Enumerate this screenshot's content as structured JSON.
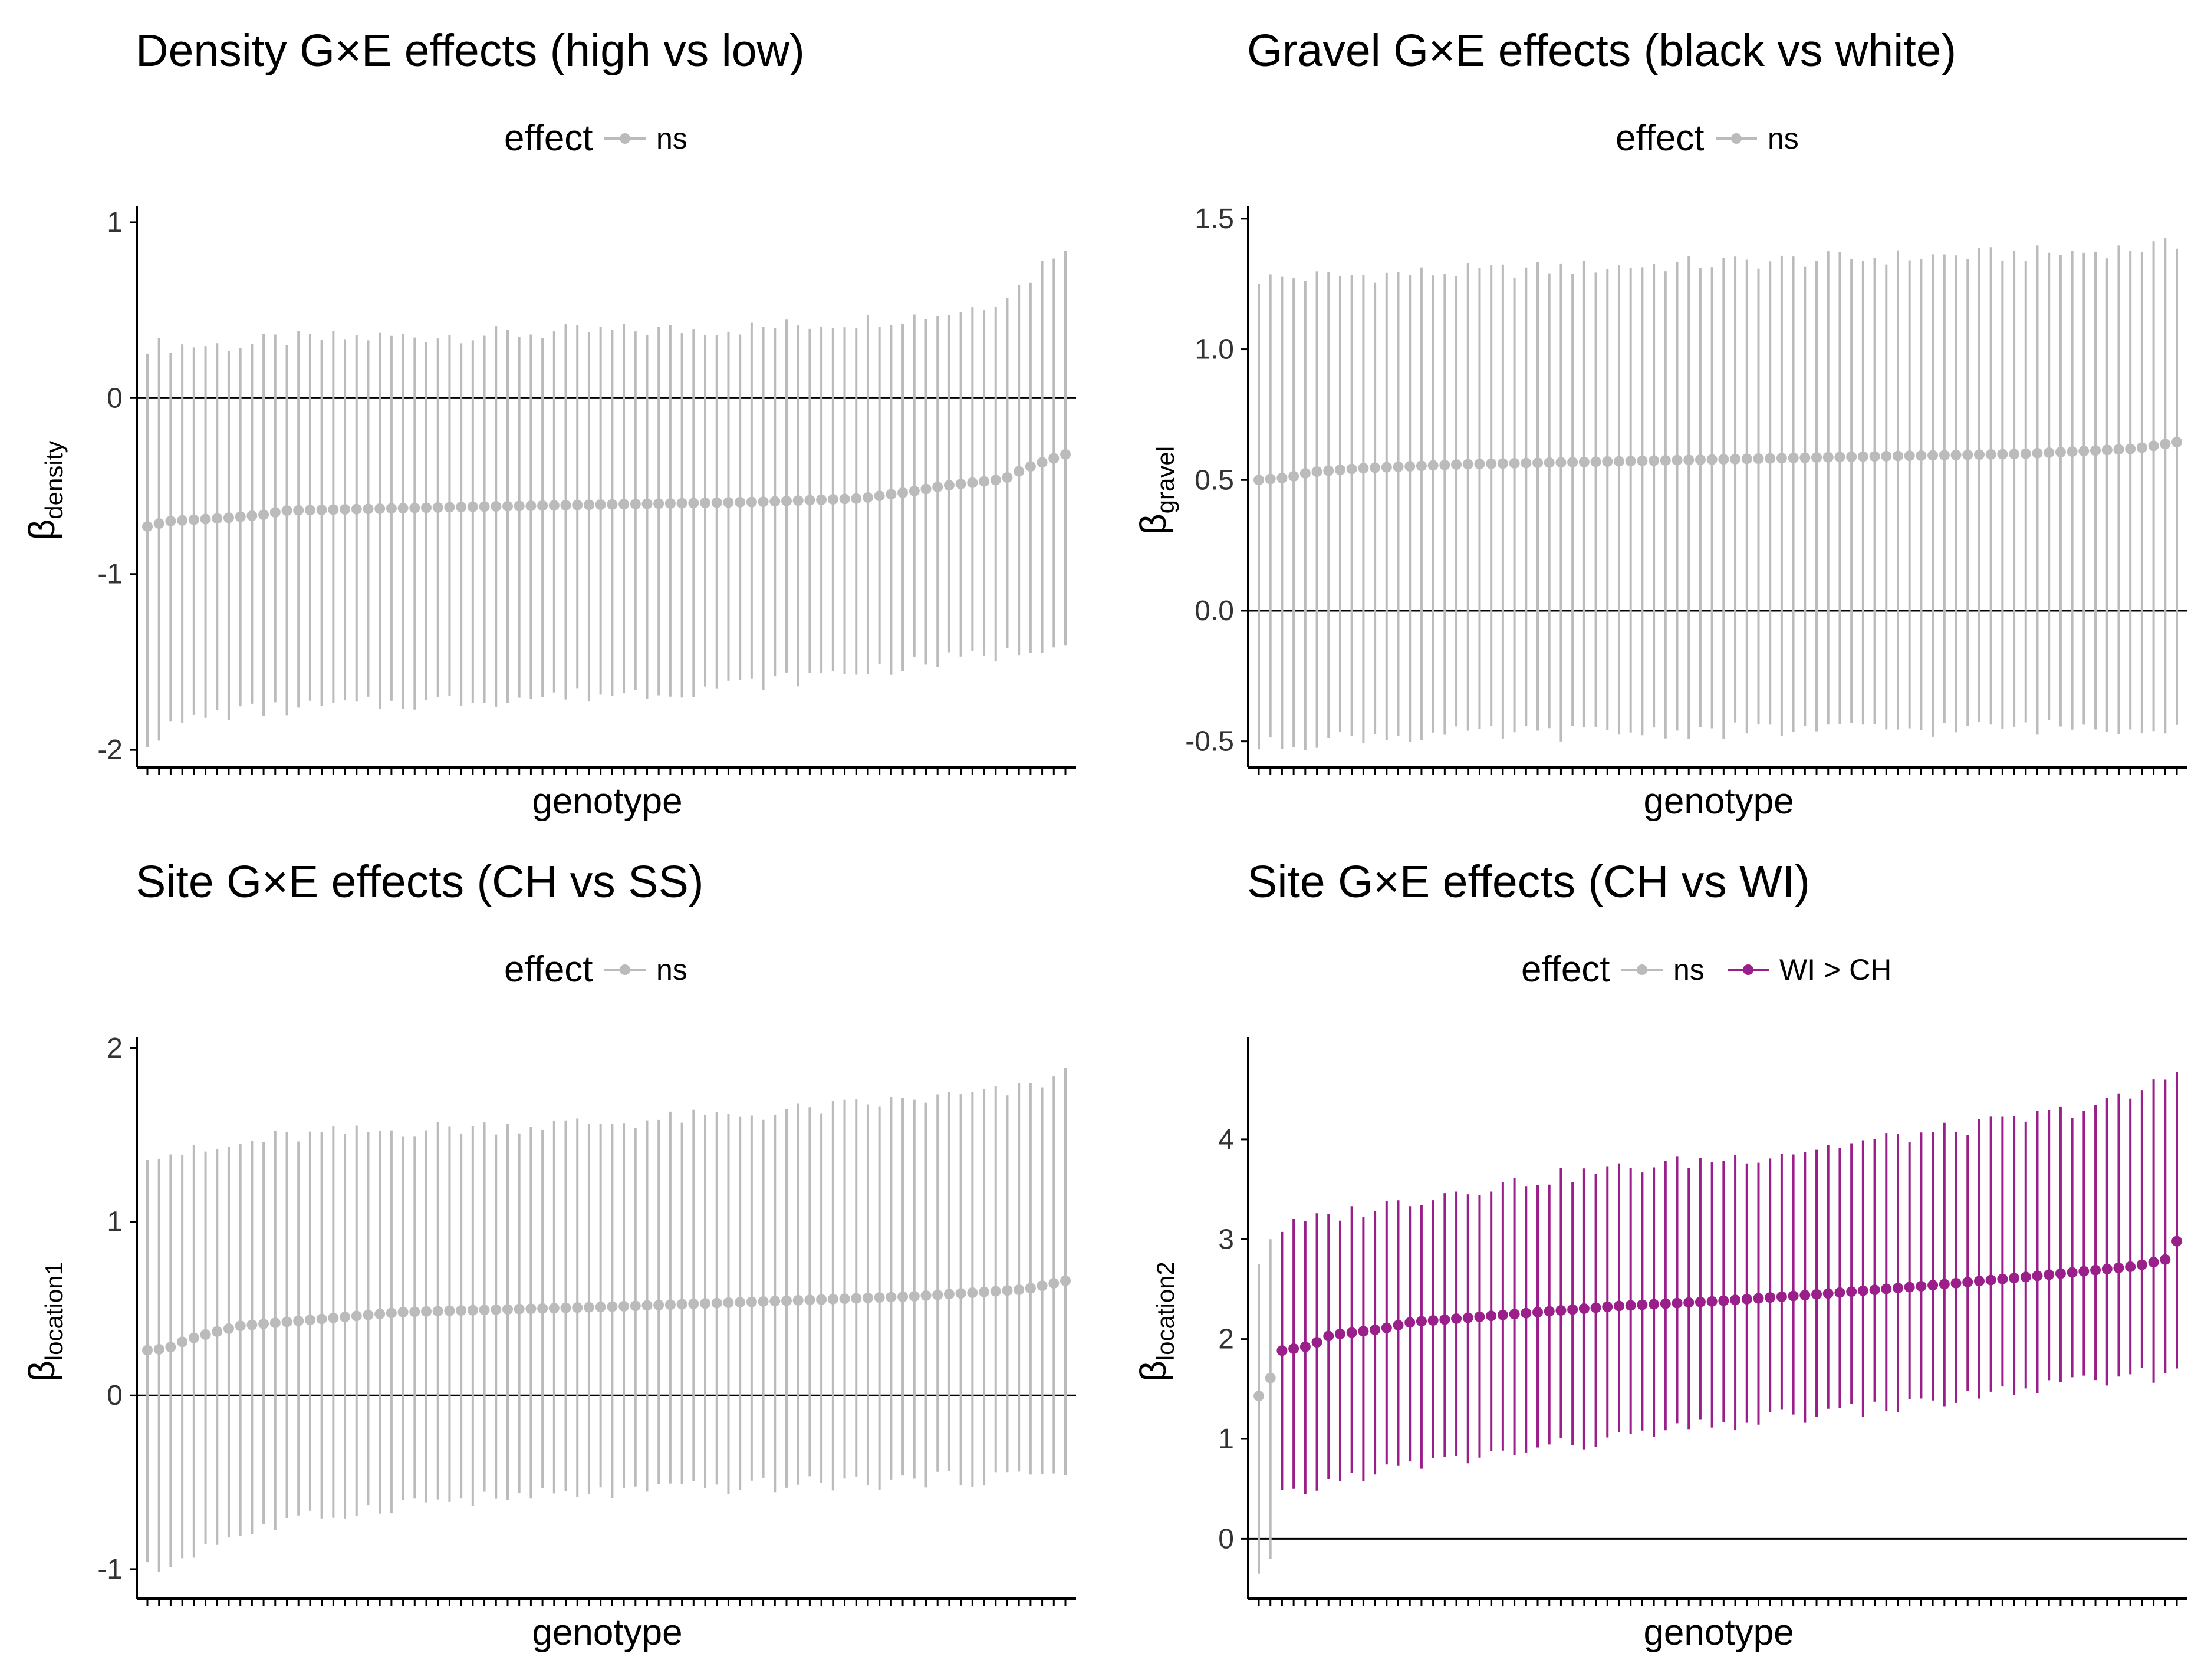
{
  "figure": {
    "x_axis_title": "genotype",
    "legend_title": "effect",
    "n_genotypes": 80,
    "colors": {
      "ns": "#BBBBBB",
      "WI > CH": "#9B1F8A",
      "zero_line": "#000000",
      "axis": "#000000"
    }
  },
  "chart_data": [
    {
      "type": "scatter",
      "subtype": "point-range (estimate with 95% interval)",
      "title": "Density G×E effects (high vs low)",
      "xlabel": "genotype",
      "ylabel": {
        "symbol": "β",
        "subscript": "density"
      },
      "ylim": [
        -2.1,
        1.05
      ],
      "yticks": [
        -2,
        -1,
        0,
        1
      ],
      "ytick_labels": [
        "-2",
        "-1",
        "0",
        "1"
      ],
      "hline": 0,
      "legend": {
        "title": "effect",
        "entries": [
          "ns"
        ],
        "position": "top"
      },
      "series": [
        {
          "name": "ns",
          "estimate": {
            "points": [
              [
                0,
                -0.73
              ],
              [
                2,
                -0.7
              ],
              [
                8,
                -0.68
              ],
              [
                12,
                -0.66
              ],
              [
                13,
                -0.64
              ],
              [
                30,
                -0.62
              ],
              [
                40,
                -0.61
              ],
              [
                60,
                -0.59
              ],
              [
                70,
                -0.57
              ],
              [
                75,
                -0.53
              ],
              [
                78,
                -0.5
              ],
              [
                81,
                -0.48
              ],
              [
                84,
                -0.46
              ],
              [
                86,
                -0.4
              ],
              [
                88,
                -0.36
              ],
              [
                90,
                -0.32
              ]
            ]
          },
          "upper": {
            "points": [
              [
                0,
                0.3
              ],
              [
                10,
                0.3
              ],
              [
                12,
                0.33
              ],
              [
                25,
                0.35
              ],
              [
                45,
                0.38
              ],
              [
                60,
                0.4
              ],
              [
                70,
                0.44
              ],
              [
                78,
                0.48
              ],
              [
                82,
                0.53
              ],
              [
                86,
                0.65
              ],
              [
                88,
                0.78
              ],
              [
                90,
                0.88
              ]
            ]
          },
          "lower": {
            "points": [
              [
                0,
                -1.95
              ],
              [
                2,
                -1.88
              ],
              [
                6,
                -1.8
              ],
              [
                12,
                -1.77
              ],
              [
                30,
                -1.72
              ],
              [
                50,
                -1.67
              ],
              [
                60,
                -1.62
              ],
              [
                70,
                -1.55
              ],
              [
                80,
                -1.48
              ],
              [
                85,
                -1.45
              ],
              [
                88,
                -1.4
              ],
              [
                90,
                -1.36
              ]
            ]
          }
        }
      ]
    },
    {
      "type": "scatter",
      "subtype": "point-range (estimate with 95% interval)",
      "title": "Gravel G×E effects (black vs white)",
      "xlabel": "genotype",
      "ylabel": {
        "symbol": "β",
        "subscript": "gravel"
      },
      "ylim": [
        -0.6,
        1.52
      ],
      "yticks": [
        -0.5,
        0.0,
        0.5,
        1.0,
        1.5
      ],
      "ytick_labels": [
        "-0.5",
        "0.0",
        "0.5",
        "1.0",
        "1.5"
      ],
      "hline": 0,
      "legend": {
        "title": "effect",
        "entries": [
          "ns"
        ],
        "position": "top"
      },
      "series": [
        {
          "name": "ns",
          "estimate": {
            "points": [
              [
                0,
                0.5
              ],
              [
                3,
                0.51
              ],
              [
                5,
                0.53
              ],
              [
                10,
                0.545
              ],
              [
                20,
                0.56
              ],
              [
                40,
                0.575
              ],
              [
                60,
                0.59
              ],
              [
                75,
                0.6
              ],
              [
                86,
                0.62
              ],
              [
                90,
                0.645
              ]
            ]
          },
          "upper": {
            "points": [
              [
                0,
                1.27
              ],
              [
                15,
                1.29
              ],
              [
                30,
                1.31
              ],
              [
                60,
                1.35
              ],
              [
                80,
                1.37
              ],
              [
                90,
                1.4
              ]
            ]
          },
          "lower": {
            "points": [
              [
                0,
                -0.52
              ],
              [
                10,
                -0.48
              ],
              [
                45,
                -0.46
              ],
              [
                70,
                -0.45
              ],
              [
                90,
                -0.44
              ]
            ]
          }
        }
      ]
    },
    {
      "type": "scatter",
      "subtype": "point-range (estimate with 95% interval)",
      "title": "Site G×E effects (CH vs SS)",
      "xlabel": "genotype",
      "ylabel": {
        "symbol": "β",
        "subscript": "location1"
      },
      "ylim": [
        -1.17,
        2.02
      ],
      "yticks": [
        -1,
        0,
        1,
        2
      ],
      "ytick_labels": [
        "-1",
        "0",
        "1",
        "2"
      ],
      "hline": 0,
      "legend": {
        "title": "effect",
        "entries": [
          "ns"
        ],
        "position": "top"
      },
      "series": [
        {
          "name": "ns",
          "estimate": {
            "points": [
              [
                0,
                0.26
              ],
              [
                2,
                0.27
              ],
              [
                3,
                0.3
              ],
              [
                5,
                0.34
              ],
              [
                7,
                0.37
              ],
              [
                9,
                0.4
              ],
              [
                15,
                0.43
              ],
              [
                25,
                0.48
              ],
              [
                45,
                0.51
              ],
              [
                60,
                0.54
              ],
              [
                75,
                0.57
              ],
              [
                86,
                0.61
              ],
              [
                90,
                0.66
              ]
            ]
          },
          "upper": {
            "points": [
              [
                0,
                1.4
              ],
              [
                6,
                1.4
              ],
              [
                12,
                1.48
              ],
              [
                25,
                1.53
              ],
              [
                45,
                1.57
              ],
              [
                60,
                1.62
              ],
              [
                75,
                1.7
              ],
              [
                85,
                1.75
              ],
              [
                90,
                1.85
              ]
            ]
          },
          "lower": {
            "points": [
              [
                0,
                -1.0
              ],
              [
                2,
                -0.99
              ],
              [
                5,
                -0.88
              ],
              [
                9,
                -0.8
              ],
              [
                15,
                -0.72
              ],
              [
                25,
                -0.62
              ],
              [
                45,
                -0.56
              ],
              [
                60,
                -0.52
              ],
              [
                75,
                -0.49
              ],
              [
                85,
                -0.47
              ],
              [
                90,
                -0.42
              ]
            ]
          }
        }
      ]
    },
    {
      "type": "scatter",
      "subtype": "point-range (estimate with 95% interval)",
      "title": "Site G×E effects (CH vs WI)",
      "xlabel": "genotype",
      "ylabel": {
        "symbol": "β",
        "subscript": "location2"
      },
      "ylim": [
        -0.6,
        4.95
      ],
      "yticks": [
        0,
        1,
        2,
        3,
        4
      ],
      "ytick_labels": [
        "0",
        "1",
        "2",
        "3",
        "4"
      ],
      "hline": 0,
      "legend": {
        "title": "effect",
        "entries": [
          "ns",
          "WI > CH"
        ],
        "position": "top"
      },
      "series": [
        {
          "name": "ns",
          "points": [
            {
              "x": 0,
              "y": 1.43,
              "lower": -0.35,
              "upper": 2.75
            },
            {
              "x": 1,
              "y": 1.61,
              "lower": -0.2,
              "upper": 3.0
            }
          ]
        },
        {
          "name": "WI > CH",
          "range_x": [
            2,
            90
          ],
          "estimate": {
            "points": [
              [
                2,
                1.88
              ],
              [
                5,
                1.93
              ],
              [
                7,
                2.04
              ],
              [
                12,
                2.1
              ],
              [
                15,
                2.17
              ],
              [
                25,
                2.25
              ],
              [
                35,
                2.33
              ],
              [
                45,
                2.38
              ],
              [
                55,
                2.45
              ],
              [
                65,
                2.53
              ],
              [
                75,
                2.62
              ],
              [
                86,
                2.73
              ],
              [
                89,
                2.8
              ],
              [
                90,
                2.98
              ]
            ]
          },
          "upper": {
            "points": [
              [
                2,
                3.1
              ],
              [
                8,
                3.25
              ],
              [
                20,
                3.5
              ],
              [
                35,
                3.7
              ],
              [
                50,
                3.85
              ],
              [
                65,
                4.05
              ],
              [
                75,
                4.2
              ],
              [
                85,
                4.4
              ],
              [
                90,
                4.68
              ]
            ]
          },
          "lower": {
            "points": [
              [
                2,
                0.4
              ],
              [
                5,
                0.5
              ],
              [
                10,
                0.65
              ],
              [
                20,
                0.8
              ],
              [
                35,
                1.0
              ],
              [
                50,
                1.2
              ],
              [
                65,
                1.35
              ],
              [
                75,
                1.5
              ],
              [
                85,
                1.6
              ],
              [
                90,
                1.68
              ]
            ]
          }
        }
      ]
    }
  ]
}
